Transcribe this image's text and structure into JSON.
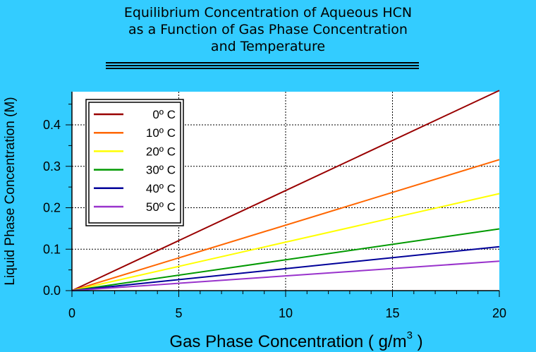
{
  "chart_data": {
    "type": "line",
    "title_lines": [
      "Equilibrium Concentration of Aqueous HCN",
      "as a Function of Gas Phase Concentration",
      "and Temperature"
    ],
    "xlabel": "Gas Phase Concentration ( g/m",
    "xlabel_superscript": "3",
    "xlabel_suffix": " )",
    "ylabel": "Liquid Phase Concentration (M)",
    "xlim": [
      0,
      20
    ],
    "ylim": [
      0,
      0.48
    ],
    "x_ticks": [
      "0",
      "5",
      "10",
      "15",
      "20"
    ],
    "y_ticks": [
      "0.0",
      "0.1",
      "0.2",
      "0.3",
      "0.4"
    ],
    "grid": true,
    "legend_position": "top-left",
    "x": [
      0,
      20
    ],
    "series": [
      {
        "name": "0º C",
        "color": "#990000",
        "values": [
          0,
          0.483
        ]
      },
      {
        "name": "10º C",
        "color": "#ff6600",
        "values": [
          0,
          0.316
        ]
      },
      {
        "name": "20º C",
        "color": "#ffff00",
        "values": [
          0,
          0.234
        ]
      },
      {
        "name": "30º C",
        "color": "#009900",
        "values": [
          0,
          0.149
        ]
      },
      {
        "name": "40º C",
        "color": "#000099",
        "values": [
          0,
          0.106
        ]
      },
      {
        "name": "50º C",
        "color": "#9933cc",
        "values": [
          0,
          0.071
        ]
      }
    ]
  }
}
